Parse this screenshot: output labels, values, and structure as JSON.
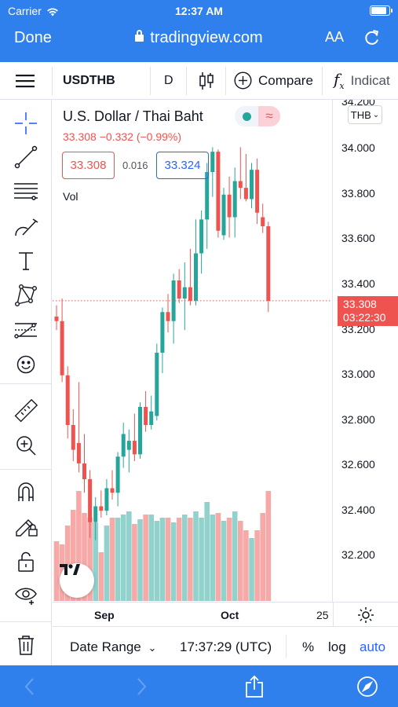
{
  "status": {
    "carrier": "Carrier",
    "time": "12:37 AM"
  },
  "browser": {
    "done_label": "Done",
    "url": "tradingview.com",
    "text_size_label": "AA"
  },
  "toolbar": {
    "symbol": "USDTHB",
    "interval": "D",
    "compare_label": "Compare",
    "indicators_label": "Indicat"
  },
  "legend": {
    "title": "U.S. Dollar / Thai Baht",
    "last": "33.308",
    "change": "−0.332",
    "change_pct": "(−0.99%)",
    "bid": "33.308",
    "spread": "0.016",
    "ask": "33.324",
    "volume_label": "Vol"
  },
  "price_scale": {
    "currency": "THB",
    "ticks": [
      "34.200",
      "34.000",
      "33.800",
      "33.600",
      "33.400",
      "33.200",
      "33.000",
      "32.800",
      "32.600",
      "32.400",
      "32.200"
    ],
    "last_price": "33.308",
    "countdown": "03:22:30"
  },
  "time_axis": {
    "labels": [
      "Sep",
      "Oct",
      "25"
    ]
  },
  "bottom": {
    "date_range_label": "Date Range",
    "clock": "17:37:29 (UTC)",
    "percent_label": "%",
    "log_label": "log",
    "auto_label": "auto"
  },
  "colors": {
    "up": "#26a69a",
    "down": "#ef5350",
    "accent": "#2962ff",
    "ios_blue": "#2f80ed"
  },
  "chart_data": {
    "type": "candlestick",
    "title": "U.S. Dollar / Thai Baht",
    "interval": "D",
    "ylim": [
      32.05,
      34.2
    ],
    "x_labels": [
      "Sep",
      "Oct",
      "25"
    ],
    "series": [
      {
        "name": "USDTHB",
        "ohlc": [
          [
            33.24,
            33.29,
            33.18,
            33.22
          ],
          [
            33.22,
            33.32,
            32.95,
            32.98
          ],
          [
            32.98,
            33.02,
            32.7,
            32.76
          ],
          [
            32.76,
            32.83,
            32.6,
            32.65
          ],
          [
            32.68,
            32.95,
            32.55,
            32.59
          ],
          [
            32.59,
            32.72,
            32.46,
            32.52
          ],
          [
            32.52,
            32.56,
            32.26,
            32.33
          ],
          [
            32.33,
            32.44,
            32.25,
            32.4
          ],
          [
            32.4,
            32.47,
            32.35,
            32.38
          ],
          [
            32.38,
            32.52,
            32.36,
            32.48
          ],
          [
            32.48,
            32.56,
            32.43,
            32.46
          ],
          [
            32.46,
            32.64,
            32.4,
            32.62
          ],
          [
            32.62,
            32.77,
            32.57,
            32.72
          ],
          [
            32.65,
            32.74,
            32.55,
            32.69
          ],
          [
            32.69,
            32.81,
            32.6,
            32.63
          ],
          [
            32.63,
            32.86,
            32.61,
            32.84
          ],
          [
            32.84,
            32.91,
            32.73,
            32.76
          ],
          [
            32.76,
            32.89,
            32.74,
            32.82
          ],
          [
            32.8,
            33.12,
            32.78,
            33.08
          ],
          [
            33.08,
            33.28,
            32.99,
            33.26
          ],
          [
            33.26,
            33.34,
            33.17,
            33.22
          ],
          [
            33.22,
            33.43,
            33.12,
            33.4
          ],
          [
            33.4,
            33.45,
            33.3,
            33.32
          ],
          [
            33.32,
            33.48,
            33.18,
            33.37
          ],
          [
            33.37,
            33.54,
            33.29,
            33.31
          ],
          [
            33.31,
            33.67,
            33.29,
            33.52
          ],
          [
            33.52,
            33.71,
            33.43,
            33.67
          ],
          [
            33.67,
            33.92,
            33.54,
            33.88
          ],
          [
            33.88,
            33.99,
            33.77,
            33.97
          ],
          [
            33.97,
            33.98,
            33.59,
            33.62
          ],
          [
            33.6,
            33.81,
            33.58,
            33.78
          ],
          [
            33.78,
            33.86,
            33.59,
            33.68
          ],
          [
            33.68,
            33.9,
            33.59,
            33.84
          ],
          [
            33.84,
            33.99,
            33.76,
            33.81
          ],
          [
            33.81,
            33.96,
            33.75,
            33.76
          ],
          [
            33.76,
            33.92,
            33.72,
            33.89
          ],
          [
            33.89,
            33.94,
            33.65,
            33.7
          ],
          [
            33.68,
            33.74,
            33.61,
            33.64
          ],
          [
            33.64,
            33.66,
            33.26,
            33.31
          ]
        ]
      },
      {
        "name": "Vol",
        "values": [
          38,
          36,
          48,
          58,
          70,
          56,
          53,
          50,
          31,
          48,
          53,
          53,
          55,
          57,
          49,
          52,
          55,
          55,
          51,
          53,
          53,
          50,
          53,
          55,
          53,
          57,
          53,
          63,
          55,
          56,
          51,
          53,
          57,
          51,
          45,
          40,
          45,
          56,
          70
        ]
      }
    ]
  }
}
